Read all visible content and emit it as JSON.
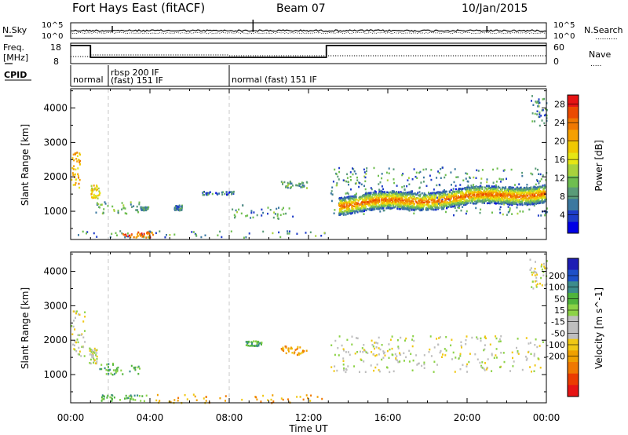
{
  "header": {
    "station": "Fort Hays East (fitACF)",
    "beam": "Beam 07",
    "date": "10/Jan/2015"
  },
  "status_panels": {
    "nsky_label": "N.Sky",
    "nsky_ticks": [
      "10^5",
      "10^0"
    ],
    "nsearch_label": "N.Search",
    "nsearch_ticks": [
      "10^5",
      "10^0"
    ],
    "freq_label": "Freq.",
    "freq_unit": "[MHz]",
    "freq_ticks": [
      "18",
      "8"
    ],
    "nave_label": "Nave",
    "nave_ticks": [
      "60",
      "0"
    ],
    "cpid_label": "CPID",
    "cpid_segments": [
      {
        "start": 0.0,
        "end": 1.9,
        "label": "normal"
      },
      {
        "start": 1.9,
        "end": 8.0,
        "label": "rbsp 200 IF",
        "label2": "(fast) 151 IF"
      },
      {
        "start": 8.0,
        "end": 24.0,
        "label": "normal (fast) 151 IF"
      }
    ]
  },
  "chart_data": [
    {
      "type": "heatmap",
      "name": "power",
      "ylabel": "Slant Range [km]",
      "xlabel": "",
      "xlim": [
        0,
        24
      ],
      "ylim": [
        180,
        4560
      ],
      "yticks": [
        1000,
        2000,
        3000,
        4000
      ],
      "colorbar": {
        "label": "Power [dB]",
        "ticks": [
          4,
          8,
          12,
          16,
          20,
          24,
          28
        ],
        "range": [
          0,
          30
        ],
        "colors": [
          "#0000e6",
          "#1e3cc8",
          "#3c78a0",
          "#5a9b78",
          "#6fbe50",
          "#a8d23c",
          "#e6e614",
          "#f0c800",
          "#f5a000",
          "#f07800",
          "#eb4b00",
          "#e61414"
        ]
      },
      "regions": [
        {
          "t0": 0.0,
          "t1": 0.45,
          "r0": 1700,
          "r1": 2800,
          "level": 20
        },
        {
          "t0": 1.0,
          "t1": 1.45,
          "r0": 1400,
          "r1": 1800,
          "level": 18
        },
        {
          "t0": 1.2,
          "t1": 3.5,
          "r0": 950,
          "r1": 1300,
          "level": 10
        },
        {
          "t0": 3.5,
          "t1": 3.9,
          "r0": 1050,
          "r1": 1150,
          "level": 8
        },
        {
          "t0": 5.2,
          "t1": 5.6,
          "r0": 1050,
          "r1": 1200,
          "level": 8
        },
        {
          "t0": 6.6,
          "t1": 8.2,
          "r0": 1500,
          "r1": 1600,
          "level": 6
        },
        {
          "t0": 8.0,
          "t1": 11.3,
          "r0": 800,
          "r1": 1200,
          "level": 8
        },
        {
          "t0": 10.6,
          "t1": 11.9,
          "r0": 1700,
          "r1": 1900,
          "level": 10
        },
        {
          "t0": 0.3,
          "t1": 13.2,
          "r0": 250,
          "r1": 450,
          "level": 8
        },
        {
          "t0": 2.6,
          "t1": 4.2,
          "r0": 260,
          "r1": 430,
          "level": 24
        },
        {
          "t0": 13.1,
          "t1": 24.0,
          "r0": 900,
          "r1": 2300,
          "level": 8
        },
        {
          "t0": 23.2,
          "t1": 24.0,
          "r0": 3500,
          "r1": 4400,
          "level": 8
        }
      ],
      "band": {
        "t0": 13.5,
        "t1": 23.9,
        "center_start": 1220,
        "center_end": 1560,
        "halfwidth": 160,
        "level": 26
      }
    },
    {
      "type": "heatmap",
      "name": "velocity",
      "ylabel": "Slant Range [km]",
      "xlabel": "Time UT",
      "xlim": [
        0,
        24
      ],
      "ylim": [
        180,
        4560
      ],
      "xticks": [
        "00:00",
        "04:00",
        "08:00",
        "12:00",
        "16:00",
        "20:00",
        "00:00"
      ],
      "yticks": [
        1000,
        2000,
        3000,
        4000
      ],
      "colorbar": {
        "label": "Velocity [m s^-1]",
        "ticks": [
          200,
          100,
          50,
          15,
          -15,
          -50,
          -100,
          -200
        ],
        "colors": [
          "#1e1eb4",
          "#1e50c8",
          "#3c8c8c",
          "#50b43c",
          "#8cd246",
          "#bebebe",
          "#bebebe",
          "#f0c814",
          "#f0a000",
          "#f07800",
          "#eb3c00",
          "#e61414"
        ]
      },
      "regions": [
        {
          "t0": 0.0,
          "t1": 0.7,
          "r0": 1500,
          "r1": 2900,
          "value": 0
        },
        {
          "t0": 0.9,
          "t1": 1.3,
          "r0": 1350,
          "r1": 1800,
          "value": 0
        },
        {
          "t0": 1.4,
          "t1": 3.5,
          "r0": 1000,
          "r1": 1350,
          "value": 60
        },
        {
          "t0": 1.5,
          "t1": 4.2,
          "r0": 250,
          "r1": 440,
          "value": 55
        },
        {
          "t0": 4.2,
          "t1": 13.0,
          "r0": 200,
          "r1": 450,
          "value": -55
        },
        {
          "t0": 10.6,
          "t1": 11.9,
          "r0": 1600,
          "r1": 1850,
          "value": -60
        },
        {
          "t0": 8.8,
          "t1": 9.6,
          "r0": 1850,
          "r1": 2000,
          "value": 60
        },
        {
          "t0": 13.1,
          "t1": 23.9,
          "r0": 1100,
          "r1": 2150,
          "value": 0
        },
        {
          "t0": 23.1,
          "t1": 24.0,
          "r0": 3500,
          "r1": 4400,
          "value": 0
        }
      ]
    }
  ]
}
